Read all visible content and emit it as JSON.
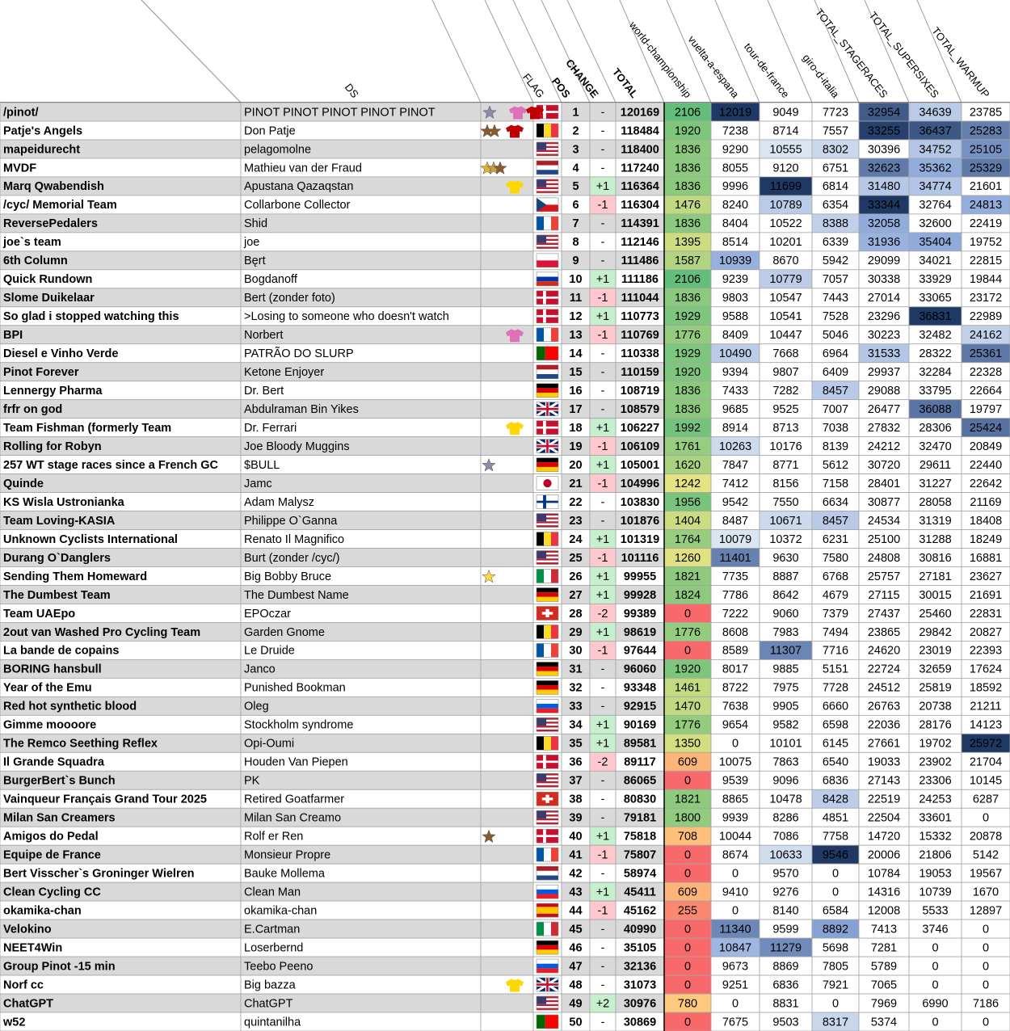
{
  "header": {
    "columns": [
      "DS",
      "FLAG",
      "POS",
      "CHANGE",
      "TOTAL",
      "world-championship",
      "vuelta-a-espana",
      "tour-de-france",
      "giro-d-italia",
      "TOTAL_STAGERACES",
      "TOTAL_SUPERSIXES",
      "TOTAL_WARMUP"
    ]
  },
  "rows": [
    [
      "/pinot/",
      "PINOT PINOT PINOT PINOT PINOT",
      1,
      "-",
      120169,
      2106,
      12019,
      9049,
      7723,
      32954,
      34639,
      23785
    ],
    [
      "Patje's Angels",
      "Don Patje",
      2,
      "-",
      118484,
      1920,
      7238,
      8714,
      7557,
      33255,
      36437,
      25283
    ],
    [
      "mapeidurecht",
      "pelagomolne",
      3,
      "-",
      118400,
      1836,
      9290,
      10555,
      8302,
      30396,
      34752,
      25105
    ],
    [
      "MVDF",
      "Mathieu van der Fraud",
      4,
      "-",
      117240,
      1836,
      8055,
      9120,
      6751,
      32623,
      35362,
      25329
    ],
    [
      "Marq Qwabendish",
      "Apustana Qazaqstan",
      5,
      "+1",
      116364,
      1836,
      9996,
      11699,
      6814,
      31480,
      34774,
      21601
    ],
    [
      "/cyc/ Memorial Team",
      "Collarbone Collector",
      6,
      "-1",
      116304,
      1476,
      8240,
      10789,
      6354,
      33344,
      32764,
      24813
    ],
    [
      "ReversePedalers",
      "Shid",
      7,
      "-",
      114391,
      1836,
      8404,
      10522,
      8388,
      32058,
      32600,
      22419
    ],
    [
      "joe`s team",
      "joe",
      8,
      "-",
      112146,
      1395,
      8514,
      10201,
      6339,
      31936,
      35404,
      19752
    ],
    [
      "6th Column",
      "Bęrt",
      9,
      "-",
      111486,
      1587,
      10939,
      8670,
      5942,
      29099,
      34021,
      22815
    ],
    [
      "Quick Rundown",
      "Bogdanoff",
      10,
      "+1",
      111186,
      2106,
      9239,
      10779,
      7057,
      30338,
      33929,
      19844
    ],
    [
      "Slome Duikelaar",
      "Bert (zonder foto)",
      11,
      "-1",
      111044,
      1836,
      9803,
      10547,
      7443,
      27014,
      33065,
      23172
    ],
    [
      "So glad i stopped watching this",
      ">Losing to someone who doesn't watch",
      12,
      "+1",
      110773,
      1929,
      9588,
      10541,
      7528,
      23296,
      36831,
      22989
    ],
    [
      "BPI",
      "Norbert",
      13,
      "-1",
      110769,
      1776,
      8409,
      10447,
      5046,
      30223,
      32482,
      24162
    ],
    [
      "Diesel e Vinho Verde",
      "PATRÃO DO SLURP",
      14,
      "-",
      110338,
      1929,
      10490,
      7668,
      6964,
      31533,
      28322,
      25361
    ],
    [
      "Pinot Forever",
      "Ketone Enjoyer",
      15,
      "-",
      110159,
      1920,
      9394,
      9807,
      6409,
      29937,
      32284,
      22328
    ],
    [
      "Lennergy Pharma",
      "Dr. Bert",
      16,
      "-",
      108719,
      1836,
      7433,
      7282,
      8457,
      29088,
      33795,
      22664
    ],
    [
      "frfr on god",
      "Abdulraman Bin Yikes",
      17,
      "-",
      108579,
      1836,
      9685,
      9525,
      7007,
      26477,
      36088,
      19797
    ],
    [
      "Team Fishman (formerly Team",
      "Dr. Ferrari",
      18,
      "+1",
      106227,
      1992,
      8914,
      8713,
      7038,
      27832,
      28306,
      25424
    ],
    [
      "Rolling for Robyn",
      "Joe Bloody Muggins",
      19,
      "-1",
      106109,
      1761,
      10263,
      10176,
      8139,
      24212,
      32470,
      20849
    ],
    [
      "257 WT stage races since a French GC",
      "$BULL",
      20,
      "+1",
      105001,
      1620,
      7847,
      8771,
      5612,
      30720,
      29611,
      22440
    ],
    [
      "Quinde",
      "Jamc",
      21,
      "-1",
      104996,
      1242,
      7412,
      8156,
      7158,
      28401,
      31227,
      22642
    ],
    [
      "KS Wisla Ustronianka",
      "Adam Malysz",
      22,
      "-",
      103830,
      1956,
      9542,
      7550,
      6634,
      30877,
      28058,
      21169
    ],
    [
      "Team Loving-KASIA",
      "Philippe O`Ganna",
      23,
      "-",
      101876,
      1404,
      8487,
      10671,
      8457,
      24534,
      31319,
      18408
    ],
    [
      "Unknown Cyclists International",
      "Renato Il Magnifico",
      24,
      "+1",
      101319,
      1764,
      10079,
      10372,
      6231,
      25100,
      31288,
      18249
    ],
    [
      "Durang O`Danglers",
      "Burt (zonder /cyc/)",
      25,
      "-1",
      101116,
      1260,
      11401,
      9630,
      7580,
      24808,
      30816,
      16881
    ],
    [
      "Sending Them Homeward",
      "Big Bobby Bruce",
      26,
      "+1",
      99955,
      1821,
      7735,
      8887,
      6768,
      25757,
      27181,
      23627
    ],
    [
      "The Dumbest Team",
      "The Dumbest Name",
      27,
      "+1",
      99928,
      1824,
      7786,
      8642,
      4679,
      27115,
      30015,
      21691
    ],
    [
      "Team UAEpo",
      "EPOczar",
      28,
      "-2",
      99389,
      0,
      7222,
      9060,
      7379,
      27437,
      25460,
      22831
    ],
    [
      "2out van Washed Pro Cycling Team",
      "Garden Gnome",
      29,
      "+1",
      98619,
      1776,
      8608,
      7983,
      7494,
      23865,
      29842,
      20827
    ],
    [
      "La bande de copains",
      "Le Druide",
      30,
      "-1",
      97644,
      0,
      8589,
      11307,
      7716,
      24620,
      23019,
      22393
    ],
    [
      "BORING hansbull",
      "Janco",
      31,
      "-",
      96060,
      1920,
      8017,
      9885,
      5151,
      22724,
      32659,
      17624
    ],
    [
      "Year of the Emu",
      "Punished Bookman",
      32,
      "-",
      93348,
      1461,
      8722,
      7975,
      7728,
      24512,
      25819,
      18592
    ],
    [
      "Red hot synthetic blood",
      "Oleg",
      33,
      "-",
      92915,
      1470,
      7638,
      9905,
      6660,
      26763,
      20738,
      21211
    ],
    [
      "Gimme moooore",
      "Stockholm syndrome",
      34,
      "+1",
      90169,
      1776,
      9654,
      9582,
      6598,
      22036,
      28176,
      14123
    ],
    [
      "The Remco Seething Reflex",
      "Opi-Oumi",
      35,
      "+1",
      89581,
      1350,
      0,
      10101,
      6145,
      27661,
      19702,
      25972
    ],
    [
      "Il Grande Squadra",
      "Houden Van Piepen",
      36,
      "-2",
      89117,
      609,
      10075,
      7863,
      6540,
      19033,
      23902,
      21704
    ],
    [
      "BurgerBert`s Bunch",
      "PK",
      37,
      "-",
      86065,
      0,
      9539,
      9096,
      6836,
      27143,
      23306,
      10145
    ],
    [
      "Vainqueur Français Grand Tour 2025",
      "Retired Goatfarmer",
      38,
      "-",
      80830,
      1821,
      8865,
      10478,
      8428,
      22519,
      24253,
      6287
    ],
    [
      "Milan San Creamers",
      "Milan San Creamo",
      39,
      "-",
      79181,
      1800,
      9939,
      8286,
      4851,
      22504,
      33601,
      0
    ],
    [
      "Amigos do Pedal",
      "Rolf er Ren",
      40,
      "+1",
      75818,
      708,
      10044,
      7086,
      7758,
      14720,
      15332,
      20878
    ],
    [
      "Equipe de France",
      "Monsieur Propre",
      41,
      "-1",
      75807,
      0,
      8674,
      10633,
      9546,
      20006,
      21806,
      5142
    ],
    [
      "Bert Visscher`s Groninger Wielren",
      "Bauke Mollema",
      42,
      "-",
      58974,
      0,
      0,
      9570,
      0,
      10784,
      19053,
      19567
    ],
    [
      "Clean Cycling CC",
      "Clean Man",
      43,
      "+1",
      45411,
      609,
      9410,
      9276,
      0,
      14316,
      10739,
      1670
    ],
    [
      "okamika-chan",
      "okamika-chan",
      44,
      "-1",
      45162,
      255,
      0,
      8140,
      6584,
      12008,
      5533,
      12897
    ],
    [
      "Velokino",
      "E.Cartman",
      45,
      "-",
      40990,
      0,
      11340,
      9599,
      8892,
      7413,
      3746,
      0
    ],
    [
      "NEET4Win",
      "Loserbernd",
      46,
      "-",
      35105,
      0,
      10847,
      11279,
      5698,
      7281,
      0,
      0
    ],
    [
      "Group Pinot -15 min",
      "Teebo Peeno",
      47,
      "-",
      32136,
      0,
      9673,
      8869,
      7805,
      5789,
      0,
      0
    ],
    [
      "Norf cc",
      "Big bazza",
      48,
      "-",
      31073,
      0,
      9251,
      6836,
      7921,
      7065,
      0,
      0
    ],
    [
      "ChatGPT",
      "ChatGPT",
      49,
      "+2",
      30976,
      780,
      0,
      8831,
      0,
      7969,
      6990,
      7186
    ],
    [
      "w52",
      "quintanilha",
      50,
      "-",
      30869,
      0,
      7675,
      9503,
      8317,
      5374,
      0,
      0
    ]
  ]
}
